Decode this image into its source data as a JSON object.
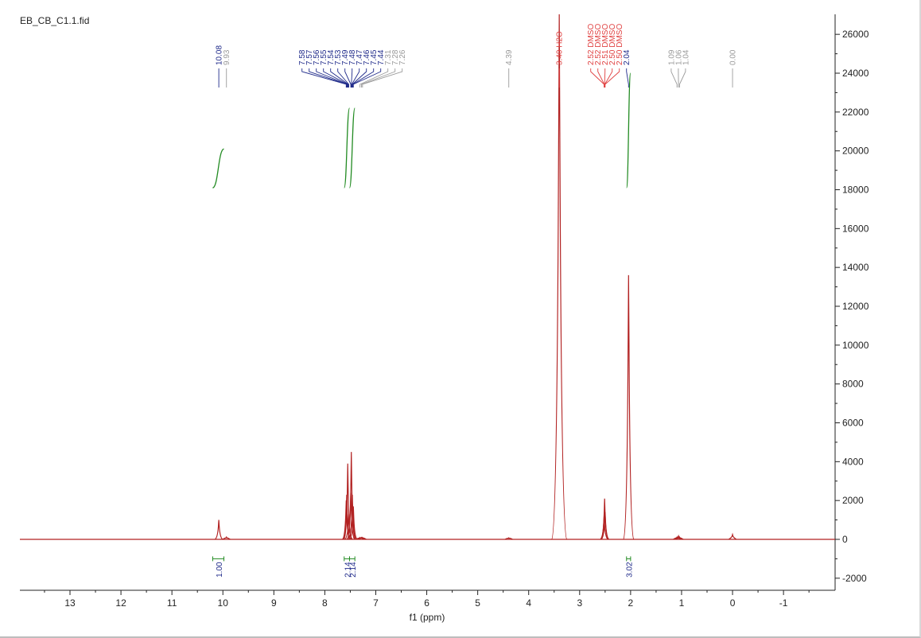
{
  "window": {
    "file_title": "EB_CB_C1.1.fid"
  },
  "colors": {
    "spectrum": "#b22222",
    "integral": "#228b22",
    "label_blue": "#1f2a8a",
    "label_red": "#e04040",
    "label_gray": "#9a9a9a",
    "axis": "#222222"
  },
  "chart_data": {
    "type": "line",
    "title": "EB_CB_C1.1.fid",
    "xlabel": "f1 (ppm)",
    "ylabel": "",
    "x_reversed": true,
    "xlim": [
      14.0,
      -2.0
    ],
    "ylim": [
      -2700,
      27000
    ],
    "x_ticks": [
      13,
      12,
      11,
      10,
      9,
      8,
      7,
      6,
      5,
      4,
      3,
      2,
      1,
      0,
      -1
    ],
    "x_tick_labels": [
      "13",
      "12",
      "11",
      "10",
      "9",
      "8",
      "7",
      "6",
      "5",
      "4",
      "3",
      "2",
      "1",
      "0",
      "-1"
    ],
    "y_ticks": [
      26000,
      24000,
      22000,
      20000,
      18000,
      16000,
      14000,
      12000,
      10000,
      8000,
      6000,
      4000,
      2000,
      0,
      -2000
    ],
    "y_tick_labels": [
      "26000",
      "24000",
      "22000",
      "20000",
      "18000",
      "16000",
      "14000",
      "12000",
      "10000",
      "8000",
      "6000",
      "4000",
      "2000",
      "0",
      "-2000"
    ],
    "peaks": [
      {
        "ppm": 10.08,
        "height": 1000
      },
      {
        "ppm": 9.93,
        "height": 120
      },
      {
        "ppm": 7.58,
        "height": 2000
      },
      {
        "ppm": 7.57,
        "height": 2300
      },
      {
        "ppm": 7.55,
        "height": 3900
      },
      {
        "ppm": 7.53,
        "height": 1300
      },
      {
        "ppm": 7.49,
        "height": 2400
      },
      {
        "ppm": 7.48,
        "height": 4500
      },
      {
        "ppm": 7.46,
        "height": 2300
      },
      {
        "ppm": 7.44,
        "height": 1700
      },
      {
        "ppm": 7.31,
        "height": 100
      },
      {
        "ppm": 7.28,
        "height": 100
      },
      {
        "ppm": 7.26,
        "height": 100
      },
      {
        "ppm": 4.39,
        "height": 80
      },
      {
        "ppm": 3.4,
        "height": 27500
      },
      {
        "ppm": 2.52,
        "height": 1200
      },
      {
        "ppm": 2.51,
        "height": 2100
      },
      {
        "ppm": 2.5,
        "height": 1400
      },
      {
        "ppm": 2.04,
        "height": 13600
      },
      {
        "ppm": 1.09,
        "height": 120
      },
      {
        "ppm": 1.06,
        "height": 180
      },
      {
        "ppm": 1.04,
        "height": 120
      },
      {
        "ppm": 0.0,
        "height": 250
      }
    ],
    "peak_labels": [
      {
        "text": "10.08",
        "ppm": 10.08,
        "color": "blue"
      },
      {
        "text": "9.93",
        "ppm": 9.93,
        "color": "gray"
      },
      {
        "text": "7.58",
        "ppm": 7.58,
        "color": "blue"
      },
      {
        "text": "7.57",
        "ppm": 7.57,
        "color": "blue"
      },
      {
        "text": "7.56",
        "ppm": 7.56,
        "color": "blue"
      },
      {
        "text": "7.55",
        "ppm": 7.55,
        "color": "blue"
      },
      {
        "text": "7.54",
        "ppm": 7.54,
        "color": "blue"
      },
      {
        "text": "7.53",
        "ppm": 7.53,
        "color": "blue"
      },
      {
        "text": "7.49",
        "ppm": 7.49,
        "color": "blue"
      },
      {
        "text": "7.48",
        "ppm": 7.48,
        "color": "blue"
      },
      {
        "text": "7.47",
        "ppm": 7.47,
        "color": "blue"
      },
      {
        "text": "7.46",
        "ppm": 7.46,
        "color": "blue"
      },
      {
        "text": "7.45",
        "ppm": 7.45,
        "color": "blue"
      },
      {
        "text": "7.44",
        "ppm": 7.44,
        "color": "blue"
      },
      {
        "text": "7.31",
        "ppm": 7.31,
        "color": "gray"
      },
      {
        "text": "7.28",
        "ppm": 7.28,
        "color": "gray"
      },
      {
        "text": "7.26",
        "ppm": 7.26,
        "color": "gray"
      },
      {
        "text": "4.39",
        "ppm": 4.39,
        "color": "gray"
      },
      {
        "text": "3.40 H2O",
        "ppm": 3.4,
        "color": "red"
      },
      {
        "text": "2.52 DMSO",
        "ppm": 2.52,
        "color": "red"
      },
      {
        "text": "2.52 DMSO",
        "ppm": 2.515,
        "color": "red"
      },
      {
        "text": "2.51 DMSO",
        "ppm": 2.51,
        "color": "red"
      },
      {
        "text": "2.50 DMSO",
        "ppm": 2.505,
        "color": "red"
      },
      {
        "text": "2.50 DMSO",
        "ppm": 2.5,
        "color": "red"
      },
      {
        "text": "2.04",
        "ppm": 2.04,
        "color": "blue"
      },
      {
        "text": "1.09",
        "ppm": 1.09,
        "color": "gray"
      },
      {
        "text": "1.06",
        "ppm": 1.06,
        "color": "gray"
      },
      {
        "text": "1.04",
        "ppm": 1.04,
        "color": "gray"
      },
      {
        "text": "0.00",
        "ppm": 0.0,
        "color": "gray"
      }
    ],
    "integrals": [
      {
        "value": "1.00",
        "ppm_from": 10.2,
        "ppm_to": 9.98,
        "center": 10.08
      },
      {
        "value": "2.14",
        "ppm_from": 7.62,
        "ppm_to": 7.515,
        "center": 7.56
      },
      {
        "value": "2.14",
        "ppm_from": 7.515,
        "ppm_to": 7.41,
        "center": 7.46
      },
      {
        "value": "3.02",
        "ppm_from": 2.08,
        "ppm_to": 2.0,
        "center": 2.04
      }
    ]
  }
}
